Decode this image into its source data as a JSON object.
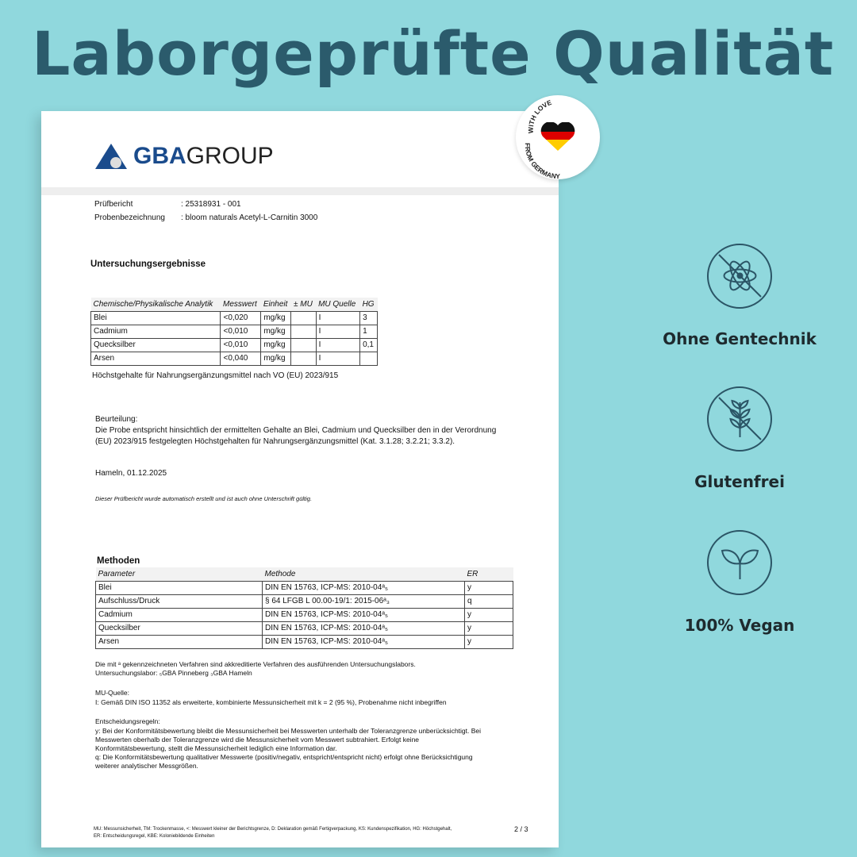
{
  "headline": "Laborgeprüfte Qualität",
  "badge": {
    "top": "WITH LOVE",
    "bottom": "FROM GERMANY"
  },
  "logo": {
    "bold": "GBA",
    "light": "GROUP"
  },
  "report": {
    "label1": "Prüfbericht",
    "value1": ": 25318931 - 001",
    "label2": "Probenbezeichnung",
    "value2": ": bloom naturals Acetyl-L-Carnitin 3000"
  },
  "results": {
    "heading": "Untersuchungsergebnisse",
    "headers": [
      "Chemische/Physikalische Analytik",
      "Messwert",
      "Einheit",
      "± MU",
      "MU Quelle",
      "HG"
    ],
    "rows": [
      [
        "Blei",
        "<0,020",
        "mg/kg",
        "",
        "I",
        "3"
      ],
      [
        "Cadmium",
        "<0,010",
        "mg/kg",
        "",
        "I",
        "1"
      ],
      [
        "Quecksilber",
        "<0,010",
        "mg/kg",
        "",
        "I",
        "0,1"
      ],
      [
        "Arsen",
        "<0,040",
        "mg/kg",
        "",
        "I",
        ""
      ]
    ],
    "note": "Höchstgehalte für Nahrungsergänzungsmittel nach VO (EU) 2023/915"
  },
  "assessment": {
    "label": "Beurteilung:",
    "line1": "Die Probe entspricht hinsichtlich der ermittelten Gehalte an Blei, Cadmium und Quecksilber den in der Verordnung",
    "line2": "(EU) 2023/915 festgelegten Höchstgehalten für Nahrungsergänzungsmittel (Kat. 3.1.28; 3.2.21; 3.3.2).",
    "place_date": "Hameln, 01.12.2025",
    "auto": "Dieser Prüfbericht wurde automatisch erstellt und ist auch ohne Unterschrift gültig."
  },
  "methods": {
    "heading": "Methoden",
    "headers": [
      "Parameter",
      "Methode",
      "ER"
    ],
    "rows": [
      [
        "Blei",
        "DIN EN 15763, ICP-MS: 2010-04ᵃ₅",
        "y"
      ],
      [
        "Aufschluss/Druck",
        "§ 64 LFGB L 00.00-19/1: 2015-06ᵃ₃",
        "q"
      ],
      [
        "Cadmium",
        "DIN EN 15763, ICP-MS: 2010-04ᵃ₅",
        "y"
      ],
      [
        "Quecksilber",
        "DIN EN 15763, ICP-MS: 2010-04ᵃ₅",
        "y"
      ],
      [
        "Arsen",
        "DIN EN 15763, ICP-MS: 2010-04ᵃ₅",
        "y"
      ]
    ],
    "note1": "Die mit ᵃ gekennzeichneten Verfahren sind akkreditierte Verfahren des ausführenden Untersuchungslabors.",
    "note2": "Untersuchungslabor:  ₅GBA Pinneberg  ₃GBA Hameln"
  },
  "mu": {
    "label": "MU-Quelle:",
    "text": "I: Gemäß DIN ISO 11352 als erweiterte, kombinierte Messunsicherheit mit k = 2 (95 %), Probenahme nicht inbegriffen"
  },
  "rules": {
    "label": "Entscheidungsregeln:",
    "y1": "y: Bei der Konformitätsbewertung bleibt die Messunsicherheit bei Messwerten unterhalb der Toleranzgrenze unberücksichtigt. Bei",
    "y2": "Messwerten oberhalb der Toleranzgrenze wird die Messunsicherheit vom Messwert subtrahiert. Erfolgt keine",
    "y3": "Konformitätsbewertung, stellt die Messunsicherheit lediglich eine Information dar.",
    "q1": "q: Die Konformitätsbewertung qualitativer Messwerte (positiv/negativ, entspricht/entspricht nicht) erfolgt ohne Berücksichtigung",
    "q2": "weiterer analytischer Messgrößen."
  },
  "footer": {
    "line1": "MU: Messunsicherheit, TM: Trockenmasse, <: Messwert kleiner der Berichtsgrenze, D: Deklaration gemäß Fertigverpackung, KS: Kundenspezifikation, HG: Höchstgehalt,",
    "line2": "ER: Entscheidungsregel, KBE: Koloniebildende Einheiten",
    "page": "2 / 3"
  },
  "features": [
    {
      "icon": "no-gmo-atom-icon",
      "label": "Ohne Gentechnik"
    },
    {
      "icon": "wheat-icon",
      "label": "Glutenfrei"
    },
    {
      "icon": "leaf-icon",
      "label": "100% Vegan"
    }
  ]
}
